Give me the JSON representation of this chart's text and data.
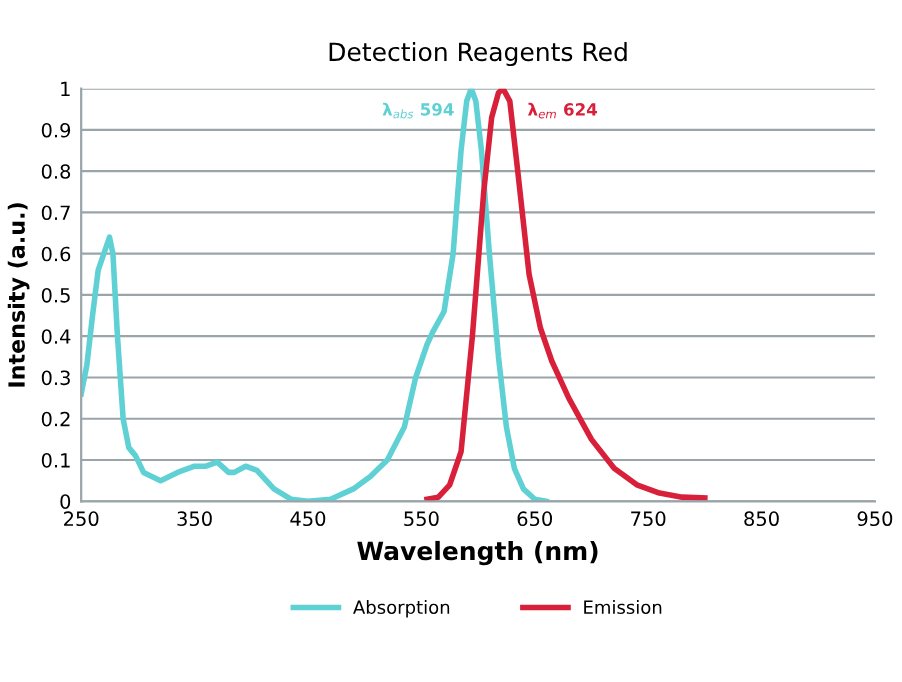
{
  "chart_data": {
    "type": "line",
    "title": "Detection Reagents Red",
    "xlabel": "Wavelength (nm)",
    "ylabel": "Intensity (a.u.)",
    "xlim": [
      250,
      950
    ],
    "xticks": [
      250,
      350,
      450,
      550,
      650,
      750,
      850,
      950
    ],
    "ylim": [
      0,
      1
    ],
    "yticks": [
      0,
      0.1,
      0.2,
      0.3,
      0.4,
      0.5,
      0.6,
      0.7,
      0.8,
      0.9,
      1
    ],
    "grid": "y",
    "legend": "bottom",
    "annotations": [
      {
        "text": "λ$_{abs}$ 594",
        "x": 594,
        "y": 1
      },
      {
        "text": "λ$_{em}$ 624",
        "x": 624,
        "y": 1
      }
    ],
    "series": [
      {
        "name": "Absorption",
        "color": "#5fd0d4",
        "x": [
          250,
          255,
          260,
          265,
          270,
          275,
          278,
          282,
          287,
          292,
          298,
          305,
          320,
          335,
          350,
          360,
          370,
          380,
          385,
          395,
          405,
          420,
          435,
          450,
          470,
          490,
          505,
          520,
          535,
          545,
          555,
          560,
          570,
          578,
          585,
          590,
          594,
          598,
          603,
          610,
          618,
          625,
          632,
          640,
          650,
          660
        ],
        "values": [
          0.26,
          0.33,
          0.45,
          0.56,
          0.6,
          0.64,
          0.6,
          0.4,
          0.2,
          0.13,
          0.11,
          0.07,
          0.05,
          0.07,
          0.085,
          0.085,
          0.095,
          0.07,
          0.07,
          0.085,
          0.075,
          0.03,
          0.005,
          0,
          0.005,
          0.03,
          0.06,
          0.1,
          0.18,
          0.3,
          0.38,
          0.41,
          0.46,
          0.6,
          0.85,
          0.97,
          1.0,
          0.97,
          0.85,
          0.6,
          0.35,
          0.18,
          0.08,
          0.03,
          0.005,
          0
        ]
      },
      {
        "name": "Emission",
        "color": "#d9203a",
        "x": [
          555,
          565,
          575,
          585,
          595,
          605,
          612,
          618,
          622,
          628,
          635,
          645,
          655,
          665,
          680,
          700,
          720,
          740,
          760,
          780,
          800
        ],
        "values": [
          0.005,
          0.01,
          0.04,
          0.12,
          0.4,
          0.75,
          0.93,
          0.99,
          1.0,
          0.97,
          0.8,
          0.55,
          0.42,
          0.34,
          0.25,
          0.15,
          0.08,
          0.04,
          0.02,
          0.01,
          0.008
        ]
      }
    ]
  }
}
